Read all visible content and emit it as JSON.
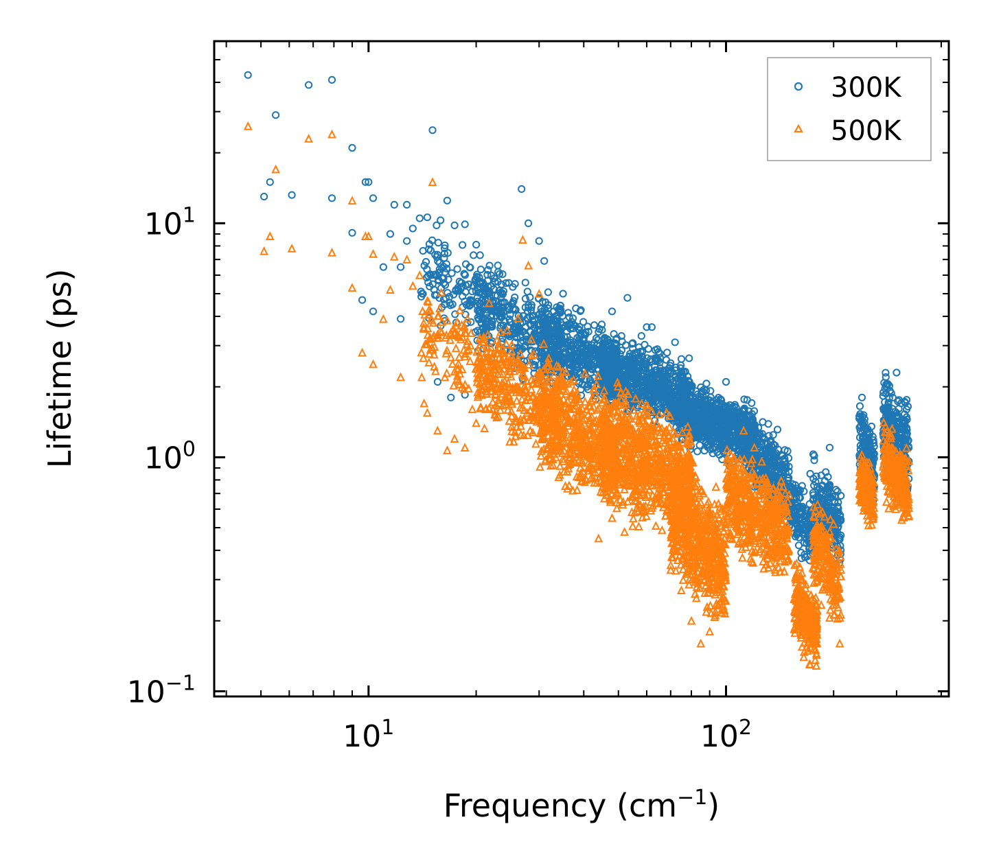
{
  "chart_data": {
    "type": "scatter",
    "title": "",
    "xscale": "log",
    "yscale": "log",
    "xlim": [
      3.7,
      420
    ],
    "ylim": [
      0.095,
      60
    ],
    "xlabel_main": "Frequency (cm",
    "xlabel_sup": "−1",
    "xlabel_end": ")",
    "ylabel": "Lifetime (ps)",
    "x_ticks": [
      {
        "value": 10,
        "base": "10",
        "exp": "1"
      },
      {
        "value": 100,
        "base": "10",
        "exp": "2"
      }
    ],
    "y_ticks": [
      {
        "value": 0.1,
        "base": "10",
        "exp": "−1"
      },
      {
        "value": 1,
        "base": "10",
        "exp": "0"
      },
      {
        "value": 10,
        "base": "10",
        "exp": "1"
      }
    ],
    "legend_position": "top-right",
    "series": [
      {
        "name": "300K",
        "marker": "circle",
        "color": "#1f77b4",
        "points": [
          [
            4.6,
            43
          ],
          [
            5.1,
            13
          ],
          [
            5.3,
            15
          ],
          [
            5.5,
            29
          ],
          [
            6.1,
            13.2
          ],
          [
            6.8,
            39
          ],
          [
            7.9,
            41
          ],
          [
            7.9,
            12.8
          ],
          [
            9.0,
            9.1
          ],
          [
            9.0,
            21
          ],
          [
            9.6,
            4.7
          ],
          [
            9.8,
            15
          ],
          [
            10.0,
            15
          ],
          [
            10.3,
            4.2
          ],
          [
            10.3,
            12.8
          ],
          [
            11.0,
            6.5
          ],
          [
            11.5,
            9
          ],
          [
            11.8,
            12
          ],
          [
            12.3,
            6.5
          ],
          [
            12.8,
            12
          ],
          [
            12.8,
            8.4
          ],
          [
            13.3,
            9.5
          ],
          [
            13.9,
            10.5
          ],
          [
            14.6,
            10.6
          ],
          [
            15.1,
            25
          ],
          [
            15.5,
            9.8
          ],
          [
            15.9,
            10.3
          ],
          [
            16.6,
            12.5
          ],
          [
            17.4,
            9.8
          ],
          [
            18.6,
            9.9
          ],
          [
            20.0,
            8.1
          ],
          [
            21.0,
            5.4
          ],
          [
            23.0,
            6.6
          ],
          [
            26.8,
            14
          ],
          [
            28.0,
            10
          ],
          [
            30.0,
            8.4
          ],
          [
            31.0,
            6.9
          ],
          [
            33.0,
            4.2
          ],
          [
            35.0,
            5.0
          ],
          [
            40.0,
            3.2
          ],
          [
            45.0,
            3.5
          ],
          [
            48.0,
            4.2
          ],
          [
            51.0,
            3.3
          ],
          [
            53.0,
            4.8
          ],
          [
            58.0,
            3.3
          ],
          [
            60.0,
            3.6
          ],
          [
            62.0,
            3.6
          ],
          [
            72.0,
            3.1
          ],
          [
            100.0,
            2.1
          ],
          [
            112.0,
            1.6
          ],
          [
            118.0,
            1.4
          ],
          [
            172.0,
            0.85
          ],
          [
            195.0,
            1.1
          ],
          [
            240.0,
            1.8
          ],
          [
            280.0,
            2.2
          ],
          [
            300.0,
            2.3
          ],
          [
            309.0,
            1.7
          ],
          [
            15.6,
            2.1
          ],
          [
            17.0,
            1.8
          ],
          [
            18.6,
            1.85
          ],
          [
            12.3,
            3.9
          ]
        ],
        "clusters": [
          {
            "x": [
              14,
              24
            ],
            "y": [
              3.0,
              9.0
            ],
            "n": 180
          },
          {
            "x": [
              20,
              35
            ],
            "y": [
              2.0,
              6.5
            ],
            "n": 300
          },
          {
            "x": [
              30,
              50
            ],
            "y": [
              1.6,
              4.6
            ],
            "n": 500
          },
          {
            "x": [
              45,
              80
            ],
            "y": [
              1.3,
              3.3
            ],
            "n": 700
          },
          {
            "x": [
              75,
              120
            ],
            "y": [
              0.9,
              2.1
            ],
            "n": 700
          },
          {
            "x": [
              115,
              150
            ],
            "y": [
              0.55,
              1.5
            ],
            "n": 350
          },
          {
            "x": [
              150,
              175
            ],
            "y": [
              0.35,
              0.85
            ],
            "n": 150
          },
          {
            "x": [
              175,
              210
            ],
            "y": [
              0.35,
              0.95
            ],
            "n": 200
          },
          {
            "x": [
              236,
              260
            ],
            "y": [
              0.6,
              1.7
            ],
            "n": 160
          },
          {
            "x": [
              275,
              325
            ],
            "y": [
              0.65,
              2.2
            ],
            "n": 260
          }
        ]
      },
      {
        "name": "500K",
        "marker": "triangle",
        "color": "#ff7f0e",
        "points": [
          [
            4.6,
            26
          ],
          [
            5.1,
            7.6
          ],
          [
            5.3,
            8.8
          ],
          [
            5.5,
            17
          ],
          [
            6.1,
            7.8
          ],
          [
            6.8,
            23
          ],
          [
            7.9,
            7.5
          ],
          [
            7.9,
            24
          ],
          [
            9.0,
            5.3
          ],
          [
            9.0,
            12.5
          ],
          [
            9.6,
            2.8
          ],
          [
            9.8,
            8.8
          ],
          [
            10.0,
            8.8
          ],
          [
            10.3,
            2.5
          ],
          [
            10.3,
            7.4
          ],
          [
            11.0,
            3.9
          ],
          [
            11.5,
            5.2
          ],
          [
            11.8,
            7.2
          ],
          [
            12.3,
            2.2
          ],
          [
            12.8,
            7.0
          ],
          [
            13.3,
            5.4
          ],
          [
            13.9,
            6.0
          ],
          [
            14.3,
            1.7
          ],
          [
            14.6,
            1.55
          ],
          [
            15.1,
            15
          ],
          [
            15.6,
            1.3
          ],
          [
            16.6,
            1.07
          ],
          [
            17.4,
            1.2
          ],
          [
            18.6,
            1.1
          ],
          [
            20.0,
            1.4
          ],
          [
            27.0,
            8.5
          ],
          [
            28.0,
            6.6
          ],
          [
            30.0,
            5.0
          ],
          [
            44.0,
            0.45
          ],
          [
            48.0,
            0.55
          ],
          [
            52.0,
            0.48
          ],
          [
            75.0,
            0.27
          ],
          [
            80.0,
            0.2
          ],
          [
            85.0,
            0.16
          ],
          [
            90.0,
            0.18
          ],
          [
            112.0,
            1.3
          ],
          [
            120.0,
            1.1
          ],
          [
            165.0,
            0.14
          ],
          [
            172.0,
            0.13
          ],
          [
            195.0,
            0.45
          ],
          [
            208.0,
            0.16
          ]
        ],
        "clusters": [
          {
            "x": [
              14,
              24
            ],
            "y": [
              1.5,
              5.5
            ],
            "n": 160
          },
          {
            "x": [
              20,
              35
            ],
            "y": [
              0.9,
              4.0
            ],
            "n": 300
          },
          {
            "x": [
              30,
              50
            ],
            "y": [
              0.6,
              2.7
            ],
            "n": 550
          },
          {
            "x": [
              45,
              80
            ],
            "y": [
              0.45,
              2.0
            ],
            "n": 800
          },
          {
            "x": [
              70,
              100
            ],
            "y": [
              0.2,
              1.0
            ],
            "n": 600
          },
          {
            "x": [
              100,
              150
            ],
            "y": [
              0.3,
              1.1
            ],
            "n": 500
          },
          {
            "x": [
              155,
              180
            ],
            "y": [
              0.13,
              0.35
            ],
            "n": 250
          },
          {
            "x": [
              175,
              210
            ],
            "y": [
              0.18,
              0.65
            ],
            "n": 200
          },
          {
            "x": [
              236,
              260
            ],
            "y": [
              0.5,
              1.1
            ],
            "n": 160
          },
          {
            "x": [
              275,
              325
            ],
            "y": [
              0.5,
              1.35
            ],
            "n": 260
          }
        ]
      }
    ]
  }
}
